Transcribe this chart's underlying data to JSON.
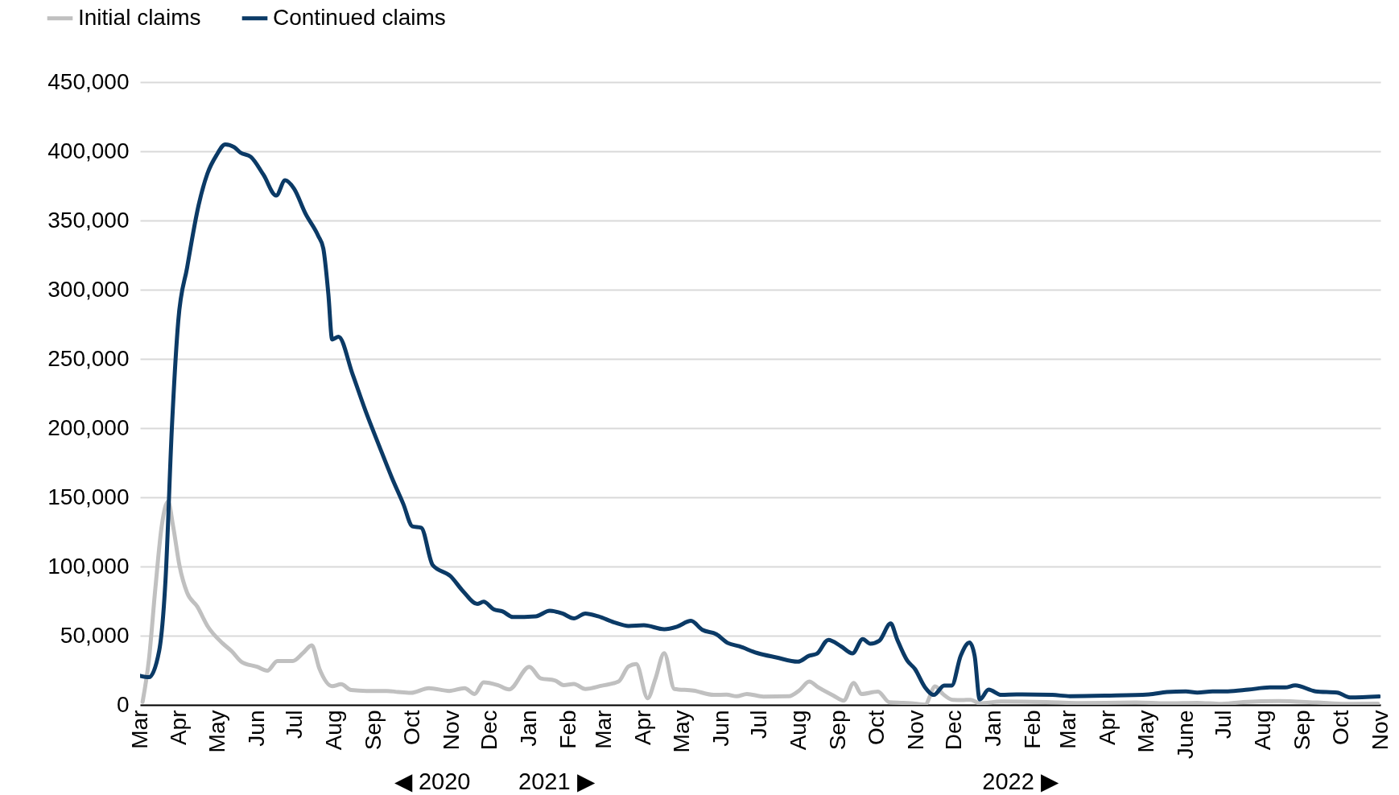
{
  "chart_data": {
    "type": "line",
    "series": [
      {
        "name": "Initial claims",
        "color": "#c0c0c0",
        "x": [
          "2020-03-03",
          "2020-03-08",
          "2020-03-13",
          "2020-03-18",
          "2020-03-23",
          "2020-03-27",
          "2020-04-01",
          "2020-04-07",
          "2020-04-15",
          "2020-04-23",
          "2020-05-05",
          "2020-05-12",
          "2020-05-20",
          "2020-06-01",
          "2020-06-09",
          "2020-06-17",
          "2020-06-29",
          "2020-07-07",
          "2020-07-14",
          "2020-07-20",
          "2020-07-30",
          "2020-08-06",
          "2020-08-14",
          "2020-08-26",
          "2020-09-11",
          "2020-09-20",
          "2020-09-30",
          "2020-10-14",
          "2020-10-30",
          "2020-11-11",
          "2020-11-19",
          "2020-11-26",
          "2020-12-07",
          "2020-12-16",
          "2021-01-01",
          "2021-01-10",
          "2021-01-21",
          "2021-01-28",
          "2021-02-05",
          "2021-02-14",
          "2021-02-27",
          "2021-03-12",
          "2021-03-20",
          "2021-03-26",
          "2021-04-04",
          "2021-04-10",
          "2021-04-17",
          "2021-04-25",
          "2021-05-10",
          "2021-05-26",
          "2021-06-05",
          "2021-06-13",
          "2021-06-21",
          "2021-07-04",
          "2021-07-24",
          "2021-08-01",
          "2021-08-09",
          "2021-08-16",
          "2021-08-28",
          "2021-09-05",
          "2021-09-13",
          "2021-09-19",
          "2021-10-02",
          "2021-10-11",
          "2021-10-22",
          "2021-11-02",
          "2021-11-08",
          "2021-11-16",
          "2021-11-22",
          "2021-11-30",
          "2021-12-07",
          "2021-12-14",
          "2021-12-21",
          "2022-01-07",
          "2022-02-11",
          "2022-03-07",
          "2022-04-23",
          "2022-05-17",
          "2022-06-10",
          "2022-06-29",
          "2022-07-16",
          "2022-08-13",
          "2022-09-12",
          "2022-10-05",
          "2022-10-30"
        ],
        "values": [
          2200,
          33000,
          84000,
          129000,
          147000,
          129000,
          100600,
          81000,
          71000,
          57000,
          44400,
          38800,
          30900,
          27500,
          24700,
          31700,
          31700,
          37400,
          43000,
          26100,
          13500,
          14900,
          10700,
          10100,
          10100,
          9300,
          8700,
          12100,
          10100,
          12100,
          7900,
          16300,
          14300,
          11200,
          27500,
          19100,
          17700,
          14300,
          15100,
          11500,
          13900,
          16800,
          27800,
          29500,
          4800,
          18700,
          37400,
          11500,
          10300,
          7200,
          7400,
          6200,
          7900,
          6000,
          6200,
          10300,
          16800,
          12700,
          6700,
          3100,
          15800,
          7900,
          9600,
          1900,
          1400,
          700,
          200,
          13400,
          7900,
          3600,
          3500,
          3700,
          1100,
          2400,
          2000,
          1300,
          1700,
          1100,
          1500,
          700,
          2000,
          2800,
          1700,
          700,
          900
        ]
      },
      {
        "name": "Continued claims",
        "color": "#0b3a66",
        "x": [
          "2020-03-01",
          "2020-03-08",
          "2020-03-16",
          "2020-03-21",
          "2020-03-26",
          "2020-03-31",
          "2020-04-07",
          "2020-04-16",
          "2020-04-23",
          "2020-04-30",
          "2020-05-07",
          "2020-05-14",
          "2020-05-19",
          "2020-05-27",
          "2020-06-06",
          "2020-06-16",
          "2020-06-23",
          "2020-06-30",
          "2020-07-09",
          "2020-07-19",
          "2020-07-23",
          "2020-07-27",
          "2020-07-30",
          "2020-08-04",
          "2020-08-15",
          "2020-08-25",
          "2020-09-05",
          "2020-09-15",
          "2020-09-24",
          "2020-10-01",
          "2020-10-08",
          "2020-10-17",
          "2020-10-31",
          "2020-11-10",
          "2020-11-21",
          "2020-11-26",
          "2020-12-04",
          "2020-12-11",
          "2020-12-19",
          "2021-01-06",
          "2021-01-17",
          "2021-01-27",
          "2021-02-05",
          "2021-02-14",
          "2021-02-24",
          "2021-03-09",
          "2021-03-20",
          "2021-04-01",
          "2021-04-17",
          "2021-04-27",
          "2021-05-08",
          "2021-05-17",
          "2021-05-28",
          "2021-06-06",
          "2021-06-15",
          "2021-06-29",
          "2021-07-14",
          "2021-07-31",
          "2021-08-09",
          "2021-08-15",
          "2021-08-24",
          "2021-09-03",
          "2021-09-12",
          "2021-09-20",
          "2021-09-26",
          "2021-10-03",
          "2021-10-12",
          "2021-10-17",
          "2021-10-25",
          "2021-10-31",
          "2021-11-08",
          "2021-11-15",
          "2021-11-23",
          "2021-11-29",
          "2021-12-06",
          "2021-12-13",
          "2021-12-17",
          "2021-12-21",
          "2021-12-28",
          "2022-01-07",
          "2022-01-19",
          "2022-02-16",
          "2022-03-02",
          "2022-03-31",
          "2022-05-03",
          "2022-05-17",
          "2022-06-01",
          "2022-06-10",
          "2022-06-22",
          "2022-07-04",
          "2022-07-20",
          "2022-08-06",
          "2022-08-18",
          "2022-08-26",
          "2022-09-11",
          "2022-09-28",
          "2022-10-08",
          "2022-10-31"
        ],
        "values": [
          21000,
          20000,
          39000,
          90000,
          200000,
          277000,
          316000,
          361000,
          384000,
          397000,
          405000,
          403000,
          399000,
          396000,
          383000,
          368000,
          379000,
          373000,
          355000,
          339000,
          330000,
          297000,
          264000,
          266000,
          239000,
          213000,
          187000,
          164000,
          145000,
          129000,
          128000,
          101000,
          93000,
          82000,
          73000,
          74500,
          69000,
          67500,
          63500,
          64000,
          68000,
          66000,
          62500,
          66000,
          64000,
          59500,
          57000,
          57500,
          54700,
          56500,
          60700,
          54200,
          51000,
          44700,
          42300,
          37500,
          34300,
          31200,
          35500,
          37000,
          47000,
          42300,
          37200,
          47500,
          44200,
          46300,
          58800,
          47500,
          32000,
          26000,
          12700,
          7200,
          14000,
          14000,
          35400,
          45100,
          35400,
          3900,
          11000,
          7200,
          7600,
          7200,
          6300,
          6700,
          7600,
          9300,
          9800,
          8900,
          9800,
          9800,
          11000,
          12600,
          12600,
          14100,
          9800,
          8900,
          5400,
          6100
        ]
      }
    ],
    "xlim": [
      "2020-03-01",
      "2022-11-01"
    ],
    "xticks": [
      {
        "value": "2020-03-01",
        "label": "Mar"
      },
      {
        "value": "2020-04-01",
        "label": "Apr"
      },
      {
        "value": "2020-05-01",
        "label": "May"
      },
      {
        "value": "2020-06-01",
        "label": "Jun"
      },
      {
        "value": "2020-07-01",
        "label": "Jul"
      },
      {
        "value": "2020-08-01",
        "label": "Aug"
      },
      {
        "value": "2020-09-01",
        "label": "Sep"
      },
      {
        "value": "2020-10-01",
        "label": "Oct"
      },
      {
        "value": "2020-11-01",
        "label": "Nov"
      },
      {
        "value": "2020-12-01",
        "label": "Dec"
      },
      {
        "value": "2021-01-01",
        "label": "Jan"
      },
      {
        "value": "2021-02-01",
        "label": "Feb"
      },
      {
        "value": "2021-03-01",
        "label": "Mar"
      },
      {
        "value": "2021-04-01",
        "label": "Apr"
      },
      {
        "value": "2021-05-01",
        "label": "May"
      },
      {
        "value": "2021-06-01",
        "label": "Jun"
      },
      {
        "value": "2021-07-01",
        "label": "Jul"
      },
      {
        "value": "2021-08-01",
        "label": "Aug"
      },
      {
        "value": "2021-09-01",
        "label": "Sep"
      },
      {
        "value": "2021-10-01",
        "label": "Oct"
      },
      {
        "value": "2021-11-01",
        "label": "Nov"
      },
      {
        "value": "2021-12-01",
        "label": "Dec"
      },
      {
        "value": "2022-01-01",
        "label": "Jan"
      },
      {
        "value": "2022-02-01",
        "label": "Feb"
      },
      {
        "value": "2022-03-01",
        "label": "Mar"
      },
      {
        "value": "2022-04-01",
        "label": "Apr"
      },
      {
        "value": "2022-05-01",
        "label": "May"
      },
      {
        "value": "2022-06-01",
        "label": "June"
      },
      {
        "value": "2022-07-01",
        "label": "Jul"
      },
      {
        "value": "2022-08-01",
        "label": "Aug"
      },
      {
        "value": "2022-09-01",
        "label": "Sep"
      },
      {
        "value": "2022-10-01",
        "label": "Oct"
      },
      {
        "value": "2022-11-01",
        "label": "Nov"
      }
    ],
    "ylim": [
      0,
      450000
    ],
    "yticks": [
      {
        "value": 0,
        "label": "0"
      },
      {
        "value": 50000,
        "label": "50,000"
      },
      {
        "value": 100000,
        "label": "100,000"
      },
      {
        "value": 150000,
        "label": "150,000"
      },
      {
        "value": 200000,
        "label": "200,000"
      },
      {
        "value": 250000,
        "label": "250,000"
      },
      {
        "value": 300000,
        "label": "300,000"
      },
      {
        "value": 350000,
        "label": "350,000"
      },
      {
        "value": 400000,
        "label": "400,000"
      },
      {
        "value": 450000,
        "label": "450,000"
      }
    ],
    "grid": "y",
    "legend": "top left",
    "annotations": [
      "◀ 2020",
      "2021 ▶",
      "2022 ▶"
    ]
  }
}
